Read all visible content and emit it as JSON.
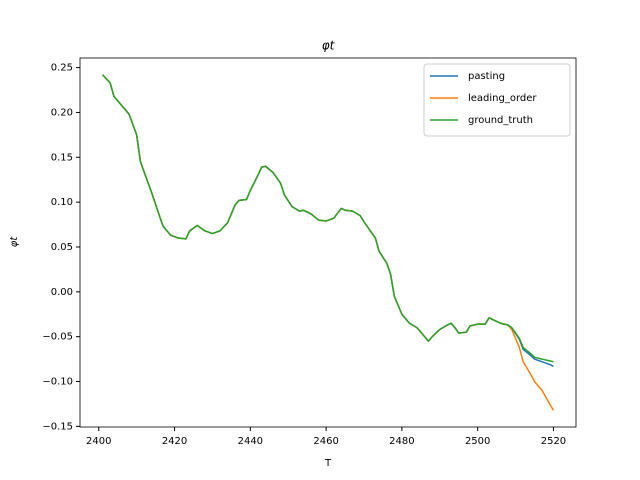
{
  "chart_data": {
    "type": "line",
    "title": "φt",
    "xlabel": "T",
    "ylabel": "φt",
    "x": [
      2401,
      2403,
      2404,
      2406,
      2408,
      2410,
      2411,
      2414,
      2416,
      2417,
      2419,
      2421,
      2423,
      2424,
      2426,
      2428,
      2430,
      2432,
      2434,
      2436,
      2437,
      2439,
      2440,
      2442,
      2443,
      2444,
      2446,
      2448,
      2449,
      2451,
      2453,
      2454,
      2456,
      2458,
      2460,
      2462,
      2464,
      2465,
      2467,
      2469,
      2470,
      2473,
      2474,
      2476,
      2477,
      2478,
      2480,
      2482,
      2484,
      2485,
      2487,
      2488,
      2490,
      2492,
      2493,
      2494,
      2495,
      2497,
      2498,
      2500,
      2502,
      2503,
      2505,
      2506,
      2508,
      2509,
      2511,
      2512,
      2514,
      2515,
      2517,
      2519,
      2520
    ],
    "series": [
      {
        "name": "pasting",
        "color": "#1f77b4",
        "values": [
          0.242,
          0.233,
          0.218,
          0.208,
          0.198,
          0.175,
          0.145,
          0.11,
          0.085,
          0.073,
          0.063,
          0.06,
          0.059,
          0.068,
          0.074,
          0.068,
          0.065,
          0.068,
          0.077,
          0.097,
          0.102,
          0.103,
          0.113,
          0.13,
          0.139,
          0.14,
          0.133,
          0.121,
          0.108,
          0.095,
          0.09,
          0.091,
          0.087,
          0.08,
          0.079,
          0.082,
          0.093,
          0.091,
          0.09,
          0.085,
          0.078,
          0.06,
          0.045,
          0.032,
          0.02,
          -0.005,
          -0.025,
          -0.035,
          -0.04,
          -0.045,
          -0.055,
          -0.05,
          -0.042,
          -0.037,
          -0.035,
          -0.04,
          -0.046,
          -0.045,
          -0.038,
          -0.036,
          -0.036,
          -0.029,
          -0.033,
          -0.035,
          -0.037,
          -0.04,
          -0.053,
          -0.064,
          -0.071,
          -0.075,
          -0.078,
          -0.081,
          -0.083
        ]
      },
      {
        "name": "leading_order",
        "color": "#ff7f0e",
        "values": [
          0.242,
          0.233,
          0.218,
          0.208,
          0.198,
          0.175,
          0.145,
          0.11,
          0.085,
          0.073,
          0.063,
          0.06,
          0.059,
          0.068,
          0.074,
          0.068,
          0.065,
          0.068,
          0.077,
          0.097,
          0.102,
          0.103,
          0.113,
          0.13,
          0.139,
          0.14,
          0.133,
          0.121,
          0.108,
          0.095,
          0.09,
          0.091,
          0.087,
          0.08,
          0.079,
          0.082,
          0.093,
          0.091,
          0.09,
          0.085,
          0.078,
          0.06,
          0.045,
          0.032,
          0.02,
          -0.005,
          -0.025,
          -0.035,
          -0.04,
          -0.045,
          -0.055,
          -0.05,
          -0.042,
          -0.037,
          -0.035,
          -0.04,
          -0.046,
          -0.045,
          -0.038,
          -0.036,
          -0.036,
          -0.029,
          -0.033,
          -0.035,
          -0.037,
          -0.042,
          -0.062,
          -0.078,
          -0.092,
          -0.1,
          -0.11,
          -0.125,
          -0.132
        ]
      },
      {
        "name": "ground_truth",
        "color": "#2ca02c",
        "values": [
          0.242,
          0.233,
          0.218,
          0.208,
          0.198,
          0.175,
          0.145,
          0.11,
          0.085,
          0.073,
          0.063,
          0.06,
          0.059,
          0.068,
          0.074,
          0.068,
          0.065,
          0.068,
          0.077,
          0.097,
          0.102,
          0.103,
          0.113,
          0.13,
          0.139,
          0.14,
          0.133,
          0.121,
          0.108,
          0.095,
          0.09,
          0.091,
          0.087,
          0.08,
          0.079,
          0.082,
          0.093,
          0.091,
          0.09,
          0.085,
          0.078,
          0.06,
          0.045,
          0.032,
          0.02,
          -0.005,
          -0.025,
          -0.035,
          -0.04,
          -0.045,
          -0.055,
          -0.05,
          -0.042,
          -0.037,
          -0.035,
          -0.04,
          -0.046,
          -0.045,
          -0.038,
          -0.036,
          -0.036,
          -0.029,
          -0.033,
          -0.035,
          -0.037,
          -0.04,
          -0.052,
          -0.062,
          -0.069,
          -0.073,
          -0.075,
          -0.077,
          -0.078
        ]
      }
    ],
    "xlim": [
      2395.05,
      2525.95
    ],
    "xticks": [
      2400,
      2420,
      2440,
      2460,
      2480,
      2500,
      2520
    ],
    "ylim": [
      -0.1507,
      0.2607
    ],
    "yticks": [
      {
        "value": -0.15,
        "label": "−0.15"
      },
      {
        "value": -0.1,
        "label": "−0.10"
      },
      {
        "value": -0.05,
        "label": "−0.05"
      },
      {
        "value": 0,
        "label": "0.00"
      },
      0.05,
      {
        "value": 0.1,
        "label": "0.10"
      },
      0.15,
      {
        "value": 0.2,
        "label": "0.20"
      },
      0.25
    ],
    "legend": "upper right",
    "grid": false
  }
}
